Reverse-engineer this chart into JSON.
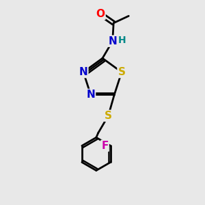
{
  "background_color": "#e8e8e8",
  "bond_color": "#000000",
  "atom_colors": {
    "O": "#ff0000",
    "N": "#0000cc",
    "S": "#ccaa00",
    "F": "#cc00aa",
    "H": "#008888",
    "C": "#000000"
  },
  "figsize": [
    3.0,
    3.0
  ],
  "dpi": 100
}
